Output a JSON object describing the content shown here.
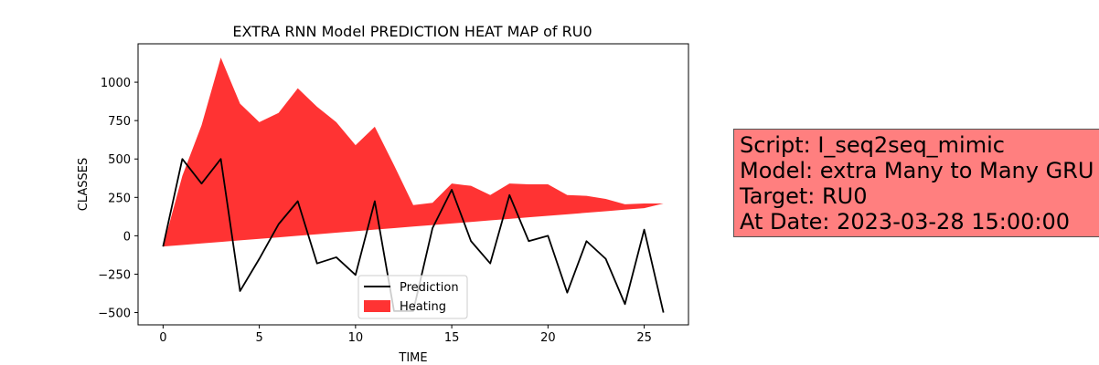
{
  "info_box": {
    "line1": "Script: I_seq2seq_mimic",
    "line2": "Model: extra Many to Many GRU",
    "line3": "Target: RU0",
    "line4": "At Date: 2023-03-28 15:00:00",
    "background": "#ff7f7f"
  },
  "chart_data": {
    "type": "area",
    "title": "EXTRA RNN Model PREDICTION HEAT MAP of RU0",
    "xlabel": "TIME",
    "ylabel": "CLASSES",
    "xlim": [
      -1.3,
      27.3
    ],
    "ylim": [
      -580,
      1250
    ],
    "x_ticks": [
      0,
      5,
      10,
      15,
      20,
      25
    ],
    "y_ticks": [
      -500,
      -250,
      0,
      250,
      500,
      750,
      1000
    ],
    "grid": false,
    "legend_position": "bottom-center",
    "x": [
      0,
      1,
      2,
      3,
      4,
      5,
      6,
      7,
      8,
      9,
      10,
      11,
      12,
      13,
      14,
      15,
      16,
      17,
      18,
      19,
      20,
      21,
      22,
      23,
      24,
      25,
      26
    ],
    "series": [
      {
        "name": "Prediction",
        "kind": "line",
        "color": "#000000",
        "values": [
          -70,
          500,
          340,
          500,
          -360,
          -150,
          75,
          225,
          -180,
          -140,
          -255,
          225,
          -490,
          -490,
          50,
          300,
          -35,
          -180,
          265,
          -35,
          0,
          -370,
          -35,
          -150,
          -445,
          40,
          -500
        ]
      },
      {
        "name": "Heating",
        "kind": "area",
        "color": "#ff0000",
        "alpha": 0.8,
        "upper": [
          -70,
          390,
          720,
          1160,
          860,
          740,
          800,
          960,
          840,
          740,
          590,
          710,
          460,
          200,
          215,
          340,
          325,
          265,
          340,
          335,
          335,
          265,
          260,
          240,
          205,
          210,
          210
        ],
        "lower": [
          -70,
          -60,
          -50,
          -40,
          -30,
          -20,
          -10,
          0,
          10,
          20,
          30,
          40,
          50,
          60,
          70,
          80,
          90,
          100,
          110,
          120,
          130,
          140,
          150,
          160,
          170,
          180,
          210
        ]
      }
    ]
  }
}
